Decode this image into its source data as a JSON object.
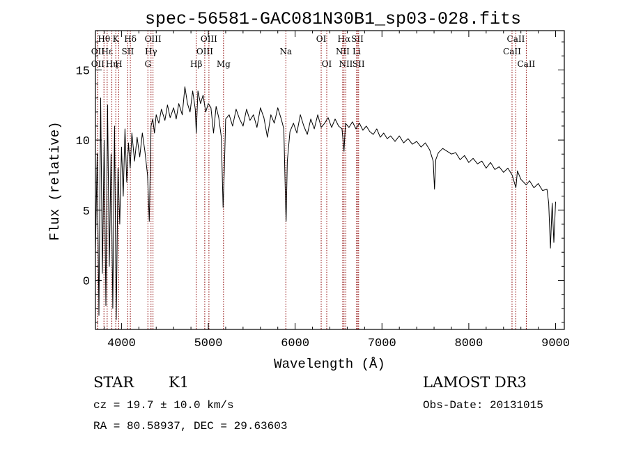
{
  "chart_data": {
    "type": "line",
    "title": "spec-56581-GAC081N30B1_sp03-028.fits",
    "xlabel": "Wavelength (Å)",
    "ylabel": "Flux (relative)",
    "xlim": [
      3700,
      9100
    ],
    "ylim": [
      -3.5,
      17.8
    ],
    "xticks": [
      4000,
      5000,
      6000,
      7000,
      8000,
      9000
    ],
    "xtick_labels": [
      "4000",
      "5000",
      "6000",
      "7000",
      "8000",
      "9000"
    ],
    "yticks": [
      0,
      5,
      10,
      15
    ],
    "ytick_labels": [
      "0",
      "5",
      "10",
      "15"
    ],
    "grid": false,
    "series_color": "#000000",
    "line_color": "#8b0000",
    "series": [
      {
        "name": "spectrum",
        "points": [
          [
            3700,
            2.0
          ],
          [
            3720,
            9.0
          ],
          [
            3740,
            -2.5
          ],
          [
            3760,
            13.0
          ],
          [
            3780,
            0.5
          ],
          [
            3800,
            10.0
          ],
          [
            3820,
            -1.8
          ],
          [
            3840,
            12.5
          ],
          [
            3860,
            1.0
          ],
          [
            3880,
            9.0
          ],
          [
            3900,
            -2.0
          ],
          [
            3920,
            11.0
          ],
          [
            3940,
            -2.8
          ],
          [
            3960,
            8.0
          ],
          [
            3980,
            4.0
          ],
          [
            4000,
            9.5
          ],
          [
            4020,
            6.0
          ],
          [
            4040,
            10.8
          ],
          [
            4060,
            7.0
          ],
          [
            4080,
            9.8
          ],
          [
            4100,
            8.0
          ],
          [
            4120,
            10.5
          ],
          [
            4150,
            8.5
          ],
          [
            4180,
            10.2
          ],
          [
            4210,
            8.8
          ],
          [
            4240,
            10.5
          ],
          [
            4270,
            9.2
          ],
          [
            4300,
            7.5
          ],
          [
            4320,
            4.2
          ],
          [
            4340,
            11.0
          ],
          [
            4360,
            11.5
          ],
          [
            4380,
            10.5
          ],
          [
            4400,
            11.8
          ],
          [
            4430,
            11.2
          ],
          [
            4460,
            12.2
          ],
          [
            4500,
            11.4
          ],
          [
            4530,
            12.5
          ],
          [
            4560,
            11.6
          ],
          [
            4600,
            12.3
          ],
          [
            4630,
            11.5
          ],
          [
            4660,
            12.6
          ],
          [
            4700,
            11.8
          ],
          [
            4730,
            13.8
          ],
          [
            4760,
            12.6
          ],
          [
            4790,
            12.0
          ],
          [
            4820,
            13.5
          ],
          [
            4850,
            12.2
          ],
          [
            4861,
            10.5
          ],
          [
            4880,
            13.5
          ],
          [
            4910,
            12.6
          ],
          [
            4940,
            13.2
          ],
          [
            4970,
            12.0
          ],
          [
            5000,
            12.6
          ],
          [
            5030,
            12.3
          ],
          [
            5060,
            10.5
          ],
          [
            5090,
            12.4
          ],
          [
            5120,
            11.6
          ],
          [
            5150,
            10.2
          ],
          [
            5170,
            5.2
          ],
          [
            5185,
            8.0
          ],
          [
            5200,
            11.5
          ],
          [
            5240,
            11.8
          ],
          [
            5280,
            11.0
          ],
          [
            5320,
            12.2
          ],
          [
            5360,
            11.5
          ],
          [
            5400,
            11.0
          ],
          [
            5440,
            12.2
          ],
          [
            5480,
            11.4
          ],
          [
            5520,
            11.8
          ],
          [
            5560,
            10.9
          ],
          [
            5600,
            12.3
          ],
          [
            5640,
            11.6
          ],
          [
            5680,
            10.2
          ],
          [
            5720,
            11.8
          ],
          [
            5760,
            11.2
          ],
          [
            5800,
            12.3
          ],
          [
            5840,
            11.5
          ],
          [
            5870,
            10.8
          ],
          [
            5890,
            5.5
          ],
          [
            5896,
            4.2
          ],
          [
            5910,
            8.5
          ],
          [
            5940,
            10.6
          ],
          [
            5980,
            11.2
          ],
          [
            6020,
            10.5
          ],
          [
            6060,
            11.8
          ],
          [
            6100,
            11.0
          ],
          [
            6140,
            10.4
          ],
          [
            6180,
            11.5
          ],
          [
            6220,
            10.8
          ],
          [
            6260,
            11.8
          ],
          [
            6300,
            10.9
          ],
          [
            6340,
            11.2
          ],
          [
            6380,
            11.6
          ],
          [
            6420,
            10.9
          ],
          [
            6460,
            11.5
          ],
          [
            6500,
            11.0
          ],
          [
            6540,
            10.8
          ],
          [
            6563,
            9.2
          ],
          [
            6580,
            11.2
          ],
          [
            6620,
            10.9
          ],
          [
            6660,
            11.3
          ],
          [
            6700,
            10.8
          ],
          [
            6740,
            11.2
          ],
          [
            6780,
            10.7
          ],
          [
            6820,
            11.0
          ],
          [
            6860,
            10.6
          ],
          [
            6900,
            10.4
          ],
          [
            6940,
            10.8
          ],
          [
            6980,
            10.2
          ],
          [
            7020,
            10.5
          ],
          [
            7060,
            10.1
          ],
          [
            7100,
            10.3
          ],
          [
            7150,
            9.9
          ],
          [
            7200,
            10.3
          ],
          [
            7250,
            9.8
          ],
          [
            7300,
            10.1
          ],
          [
            7350,
            9.7
          ],
          [
            7400,
            9.9
          ],
          [
            7450,
            9.5
          ],
          [
            7500,
            9.8
          ],
          [
            7550,
            9.3
          ],
          [
            7590,
            8.5
          ],
          [
            7605,
            6.5
          ],
          [
            7620,
            8.6
          ],
          [
            7650,
            9.1
          ],
          [
            7700,
            9.4
          ],
          [
            7750,
            9.2
          ],
          [
            7800,
            9.0
          ],
          [
            7850,
            9.1
          ],
          [
            7900,
            8.6
          ],
          [
            7950,
            8.9
          ],
          [
            8000,
            8.4
          ],
          [
            8050,
            8.7
          ],
          [
            8100,
            8.3
          ],
          [
            8150,
            8.5
          ],
          [
            8200,
            8.0
          ],
          [
            8250,
            8.4
          ],
          [
            8300,
            7.9
          ],
          [
            8350,
            8.1
          ],
          [
            8400,
            7.7
          ],
          [
            8450,
            8.0
          ],
          [
            8500,
            7.5
          ],
          [
            8542,
            6.6
          ],
          [
            8560,
            7.8
          ],
          [
            8600,
            7.2
          ],
          [
            8662,
            6.8
          ],
          [
            8700,
            7.1
          ],
          [
            8750,
            6.6
          ],
          [
            8800,
            6.9
          ],
          [
            8850,
            6.4
          ],
          [
            8900,
            6.5
          ],
          [
            8920,
            5.5
          ],
          [
            8940,
            2.3
          ],
          [
            8960,
            5.5
          ],
          [
            8980,
            2.7
          ],
          [
            9000,
            5.6
          ]
        ]
      }
    ],
    "line_markers": [
      {
        "label": "Hθ",
        "x": 3798,
        "row": 0
      },
      {
        "label": "OII",
        "x": 3727,
        "row": 1
      },
      {
        "label": "OII",
        "x": 3727,
        "row": 2
      },
      {
        "label": "Hε",
        "x": 3835,
        "row": 1
      },
      {
        "label": "Hη",
        "x": 3889,
        "row": 2
      },
      {
        "label": "K",
        "x": 3934,
        "row": 0
      },
      {
        "label": "H",
        "x": 3968,
        "row": 2
      },
      {
        "label": "SII",
        "x": 4072,
        "row": 1
      },
      {
        "label": "Hδ",
        "x": 4102,
        "row": 0
      },
      {
        "label": "OIII",
        "x": 4363,
        "row": 0
      },
      {
        "label": "Hγ",
        "x": 4340,
        "row": 1
      },
      {
        "label": "G",
        "x": 4304,
        "row": 2
      },
      {
        "label": "Hβ",
        "x": 4861,
        "row": 2
      },
      {
        "label": "OIII",
        "x": 4959,
        "row": 1
      },
      {
        "label": "OIII",
        "x": 5007,
        "row": 0
      },
      {
        "label": "Mg",
        "x": 5175,
        "row": 2
      },
      {
        "label": "Na",
        "x": 5893,
        "row": 1
      },
      {
        "label": "OI",
        "x": 6300,
        "row": 0
      },
      {
        "label": "OI",
        "x": 6364,
        "row": 2
      },
      {
        "label": "Hα",
        "x": 6563,
        "row": 0
      },
      {
        "label": "NII",
        "x": 6548,
        "row": 1
      },
      {
        "label": "NII",
        "x": 6584,
        "row": 2
      },
      {
        "label": "SII",
        "x": 6717,
        "row": 0
      },
      {
        "label": "Li",
        "x": 6708,
        "row": 1
      },
      {
        "label": "SII",
        "x": 6731,
        "row": 2
      },
      {
        "label": "CaII",
        "x": 8542,
        "row": 0
      },
      {
        "label": "CaII",
        "x": 8498,
        "row": 1
      },
      {
        "label": "CaII",
        "x": 8662,
        "row": 2
      }
    ]
  },
  "info": {
    "class_label": "STAR",
    "subclass_label": "K1",
    "redshift_text": "cz = 19.7 ± 10.0 km/s",
    "coords_text": "RA =  80.58937, DEC =  29.63603",
    "survey_label": "LAMOST DR3",
    "obs_date_text": "Obs-Date: 20131015"
  }
}
